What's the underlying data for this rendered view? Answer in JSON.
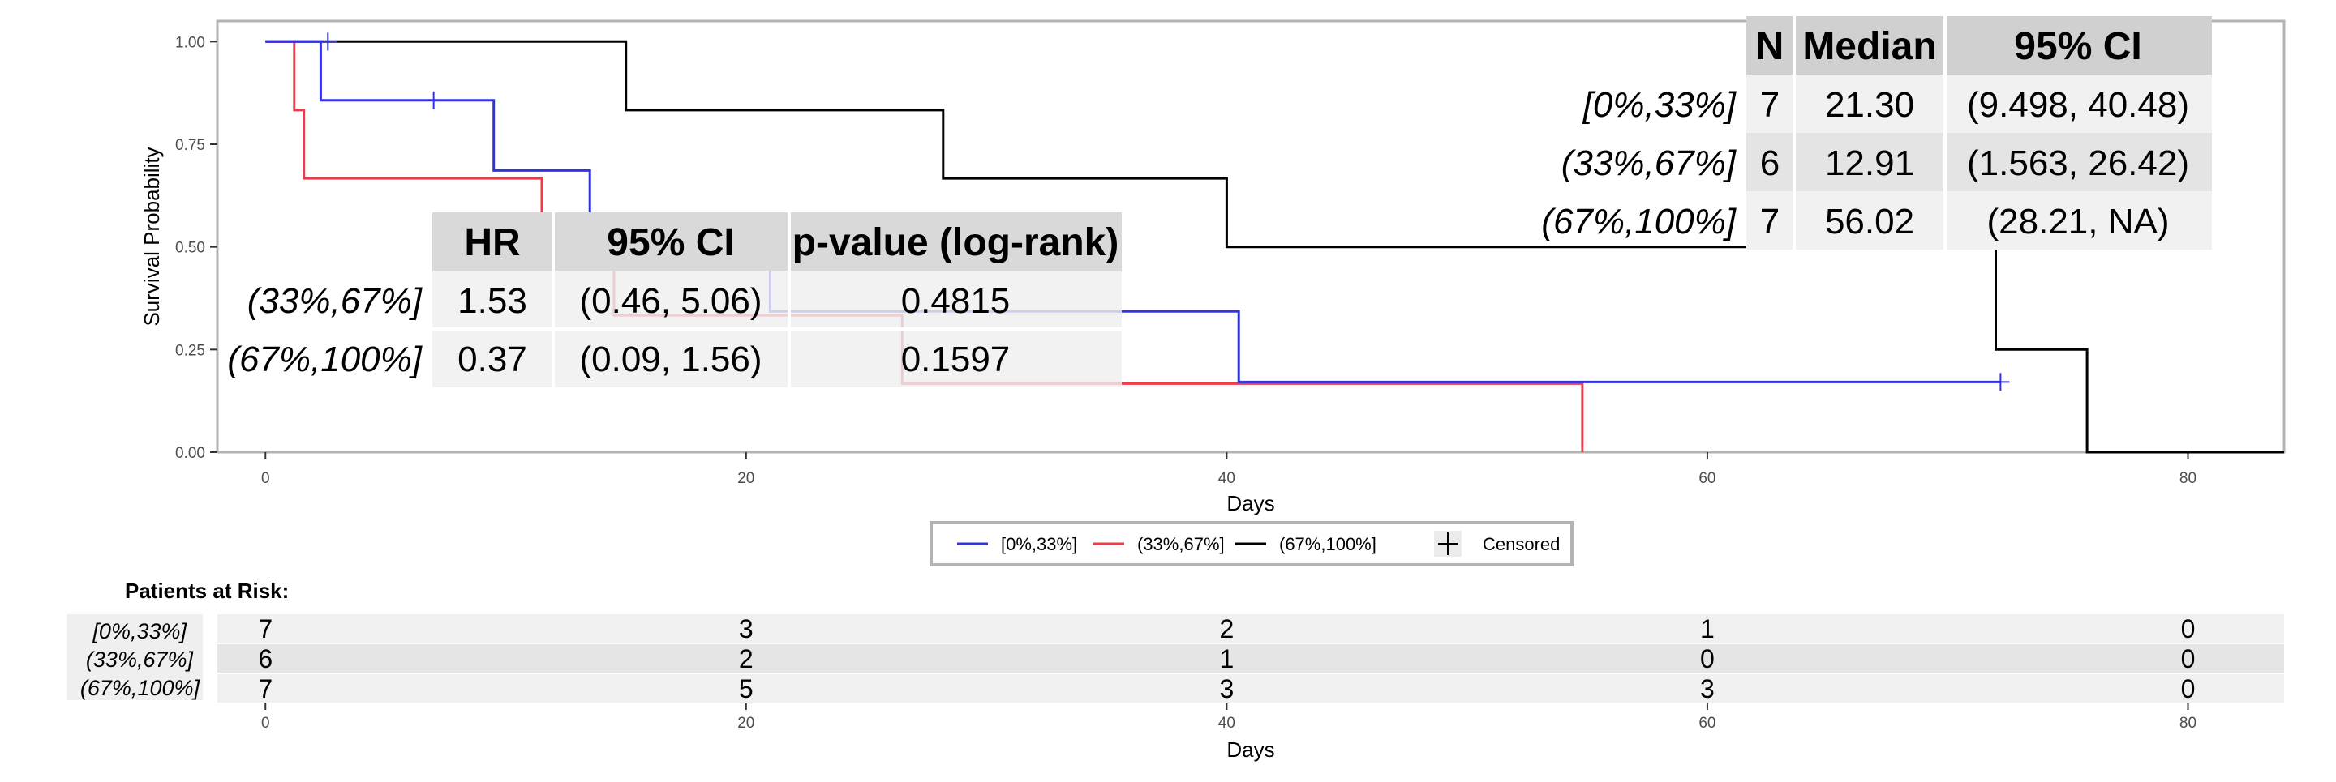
{
  "chart_data": {
    "type": "line",
    "subtype": "kaplan-meier-survival",
    "xlabel": "Days",
    "ylabel": "Survival Probability",
    "xlim": [
      -2,
      84
    ],
    "ylim": [
      0,
      1.05
    ],
    "x_ticks": [
      0,
      20,
      40,
      60,
      80
    ],
    "x_tick_labels": [
      "0",
      "20",
      "40",
      "60",
      "80"
    ],
    "y_ticks": [
      0,
      0.25,
      0.5,
      0.75,
      1.0
    ],
    "y_tick_labels": [
      "0.00",
      "0.25",
      "0.50",
      "0.75",
      "1.00"
    ],
    "grid": false,
    "legend_position": "bottom",
    "series": [
      {
        "name": "[0%,33%]",
        "color": "#3333dd",
        "steps": [
          [
            0,
            1.0
          ],
          [
            2.3,
            1.0
          ],
          [
            2.3,
            0.857
          ],
          [
            9.5,
            0.857
          ],
          [
            9.5,
            0.686
          ],
          [
            13.5,
            0.686
          ],
          [
            13.5,
            0.514
          ],
          [
            21,
            0.514
          ],
          [
            21,
            0.343
          ],
          [
            40.5,
            0.343
          ],
          [
            40.5,
            0.171
          ],
          [
            72.2,
            0.171
          ]
        ],
        "censored": [
          [
            2.6,
            1.0
          ],
          [
            7.0,
            0.857
          ],
          [
            72.2,
            0.171
          ]
        ]
      },
      {
        "name": "(33%,67%]",
        "color": "#ee3b4a",
        "steps": [
          [
            0,
            1.0
          ],
          [
            1.2,
            1.0
          ],
          [
            1.2,
            0.833
          ],
          [
            1.6,
            0.833
          ],
          [
            1.6,
            0.667
          ],
          [
            11.5,
            0.667
          ],
          [
            11.5,
            0.5
          ],
          [
            14.5,
            0.5
          ],
          [
            14.5,
            0.333
          ],
          [
            26.5,
            0.333
          ],
          [
            26.5,
            0.167
          ],
          [
            54.8,
            0.167
          ],
          [
            54.8,
            0.0
          ]
        ],
        "censored": []
      },
      {
        "name": "(67%,100%]",
        "color": "#000000",
        "steps": [
          [
            0,
            1.0
          ],
          [
            15,
            1.0
          ],
          [
            15,
            0.833
          ],
          [
            28.2,
            0.833
          ],
          [
            28.2,
            0.667
          ],
          [
            40,
            0.667
          ],
          [
            40,
            0.5
          ],
          [
            72,
            0.5
          ],
          [
            72,
            0.25
          ],
          [
            75.8,
            0.25
          ],
          [
            75.8,
            0.0
          ],
          [
            84,
            0.0
          ]
        ],
        "censored": []
      }
    ],
    "legend": {
      "entries": [
        "[0%,33%]",
        "(33%,67%]",
        "(67%,100%]"
      ],
      "censored_label": "Censored"
    },
    "hr_table": {
      "headers": [
        "HR",
        "95% CI",
        "p-value (log-rank)"
      ],
      "rows": [
        {
          "label": "(33%,67%]",
          "hr": "1.53",
          "ci": "(0.46, 5.06)",
          "p": "0.4815"
        },
        {
          "label": "(67%,100%]",
          "hr": "0.37",
          "ci": "(0.09, 1.56)",
          "p": "0.1597"
        }
      ]
    },
    "median_table": {
      "headers": [
        "N",
        "Median",
        "95% CI"
      ],
      "rows": [
        {
          "label": "[0%,33%]",
          "n": "7",
          "median": "21.30",
          "ci": "(9.498, 40.48)"
        },
        {
          "label": "(33%,67%]",
          "n": "6",
          "median": "12.91",
          "ci": "(1.563, 26.42)"
        },
        {
          "label": "(67%,100%]",
          "n": "7",
          "median": "56.02",
          "ci": "(28.21, NA)"
        }
      ]
    },
    "risk_table": {
      "title": "Patients at Risk:",
      "xlabel": "Days",
      "times": [
        0,
        20,
        40,
        60,
        80
      ],
      "time_labels": [
        "0",
        "20",
        "40",
        "60",
        "80"
      ],
      "rows": [
        {
          "label": "[0%,33%]",
          "counts": [
            "7",
            "3",
            "2",
            "1",
            "0"
          ]
        },
        {
          "label": "(33%,67%]",
          "counts": [
            "6",
            "2",
            "1",
            "0",
            "0"
          ]
        },
        {
          "label": "(67%,100%]",
          "counts": [
            "7",
            "5",
            "3",
            "3",
            "0"
          ]
        }
      ]
    }
  }
}
